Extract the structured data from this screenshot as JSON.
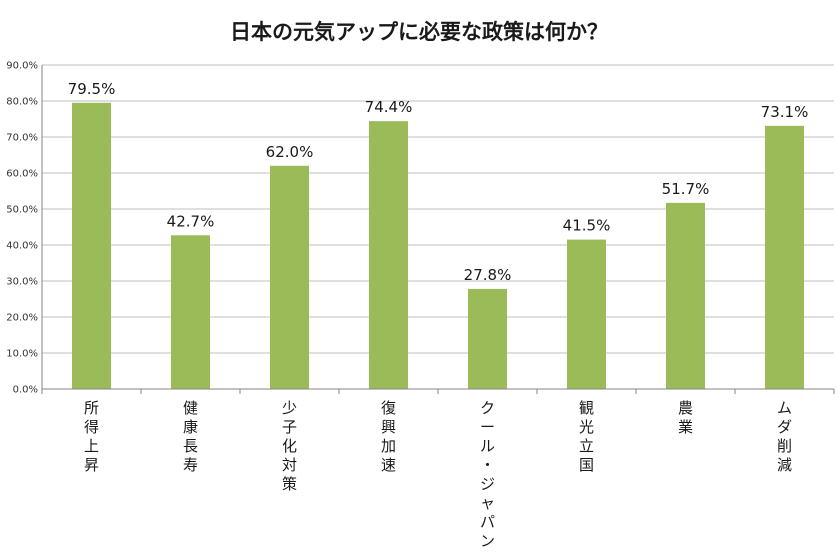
{
  "chart_data": {
    "type": "bar",
    "title": "日本の元気アップに必要な政策は何か？",
    "categories": [
      "所得上昇",
      "健康長寿",
      "少子化対策",
      "復興加速",
      "クール・ジャパン",
      "観光立国",
      "農業",
      "ムダ削減"
    ],
    "values": [
      79.5,
      42.7,
      62.0,
      74.4,
      27.8,
      41.5,
      51.7,
      73.1
    ],
    "data_labels": [
      "79.5%",
      "42.7%",
      "62.0%",
      "74.4%",
      "27.8%",
      "41.5%",
      "51.7%",
      "73.1%"
    ],
    "yticks": [
      "0.0%",
      "10.0%",
      "20.0%",
      "30.0%",
      "40.0%",
      "50.0%",
      "60.0%",
      "70.0%",
      "80.0%",
      "90.0%"
    ],
    "ylim": [
      0,
      90
    ],
    "grid": true,
    "bar_color": "#9bbb59",
    "xlabel": "",
    "ylabel": ""
  }
}
